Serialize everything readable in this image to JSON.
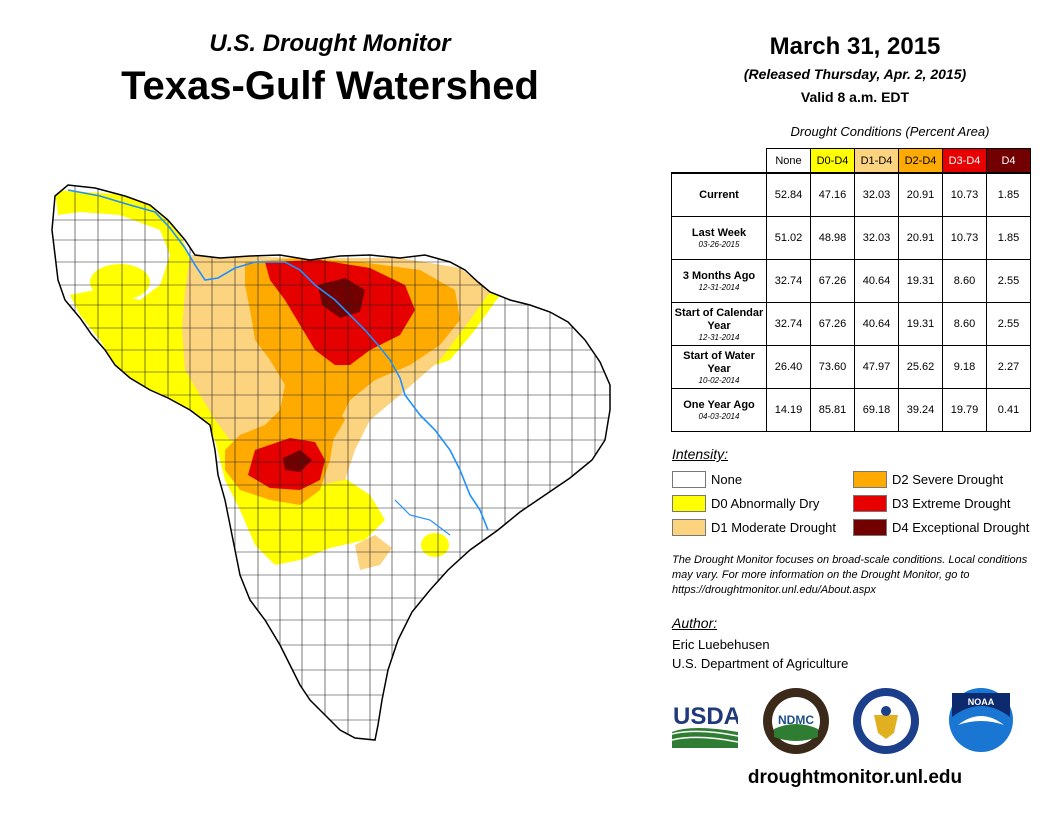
{
  "header": {
    "subtitle": "U.S. Drought Monitor",
    "title": "Texas-Gulf Watershed",
    "date": "March 31, 2015",
    "released": "(Released Thursday, Apr. 2, 2015)",
    "valid": "Valid 8 a.m. EDT"
  },
  "table": {
    "title": "Drought Conditions (Percent Area)",
    "columns": [
      "None",
      "D0-D4",
      "D1-D4",
      "D2-D4",
      "D3-D4",
      "D4"
    ],
    "rows": [
      {
        "label": "Current",
        "date": "",
        "values": [
          "52.84",
          "47.16",
          "32.03",
          "20.91",
          "10.73",
          "1.85"
        ]
      },
      {
        "label": "Last Week",
        "date": "03-26-2015",
        "values": [
          "51.02",
          "48.98",
          "32.03",
          "20.91",
          "10.73",
          "1.85"
        ]
      },
      {
        "label": "3 Months Ago",
        "date": "12-31-2014",
        "values": [
          "32.74",
          "67.26",
          "40.64",
          "19.31",
          "8.60",
          "2.55"
        ]
      },
      {
        "label": "Start of Calendar Year",
        "date": "12-31-2014",
        "values": [
          "32.74",
          "67.26",
          "40.64",
          "19.31",
          "8.60",
          "2.55"
        ]
      },
      {
        "label": "Start of Water Year",
        "date": "10-02-2014",
        "values": [
          "26.40",
          "73.60",
          "47.97",
          "25.62",
          "9.18",
          "2.27"
        ]
      },
      {
        "label": "One Year Ago",
        "date": "04-03-2014",
        "values": [
          "14.19",
          "85.81",
          "69.18",
          "39.24",
          "19.79",
          "0.41"
        ]
      }
    ]
  },
  "legend": {
    "title": "Intensity:",
    "items": [
      {
        "label": "None",
        "color": "#ffffff"
      },
      {
        "label": "D0 Abnormally Dry",
        "color": "#ffff00"
      },
      {
        "label": "D1 Moderate Drought",
        "color": "#fcd37f"
      },
      {
        "label": "D2 Severe Drought",
        "color": "#ffaa00"
      },
      {
        "label": "D3 Extreme Drought",
        "color": "#e60000"
      },
      {
        "label": "D4 Exceptional Drought",
        "color": "#730000"
      }
    ]
  },
  "note": "The Drought Monitor focuses on broad-scale conditions. Local conditions may vary. For more information on the Drought Monitor, go to https://droughtmonitor.unl.edu/About.aspx",
  "author": {
    "label": "Author:",
    "name": "Eric Luebehusen",
    "org": "U.S. Department of Agriculture"
  },
  "logos": {
    "usda": "USDA",
    "ndmc": "NDMC",
    "noaa": "NOAA"
  },
  "footer_url": "droughtmonitor.unl.edu"
}
